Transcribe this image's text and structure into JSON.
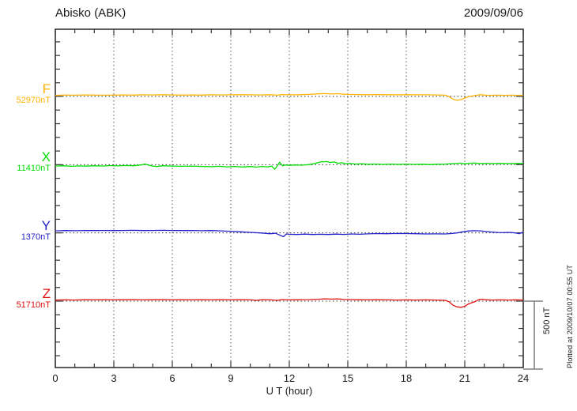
{
  "header": {
    "title": "Abisko (ABK)",
    "date": "2009/09/06"
  },
  "x_axis": {
    "label": "U T (hour)",
    "ticks": [
      0,
      3,
      6,
      9,
      12,
      15,
      18,
      21,
      24
    ]
  },
  "scale_bar": {
    "label": "500 nT",
    "value_nT": 500
  },
  "footer_note": "Plotted at 2009/10/07 00:55 UT",
  "chart_data": {
    "type": "line",
    "title": "Abisko (ABK) magnetogram 2009/09/06",
    "xlabel": "U T (hour)",
    "x_range": [
      0,
      24
    ],
    "x_major_gridline_step_hours": 3,
    "x_minor_tick_step_hours": 1,
    "y_minor_tick_step_nT": 100,
    "trace_spacing_nT": 500,
    "grid": "dotted vertical gridlines every 3 h; dotted horizontal baseline per trace",
    "series": [
      {
        "name": "F",
        "baseline_nT": 52970,
        "baseline_label": "52970nT",
        "color": "#FFB300",
        "points": [
          [
            0,
            8
          ],
          [
            0.5,
            10
          ],
          [
            1,
            9
          ],
          [
            1.5,
            11
          ],
          [
            2,
            10
          ],
          [
            2.5,
            9
          ],
          [
            3,
            10
          ],
          [
            3.5,
            11
          ],
          [
            4,
            10
          ],
          [
            4.5,
            12
          ],
          [
            5,
            11
          ],
          [
            5.5,
            13
          ],
          [
            6,
            11
          ],
          [
            6.5,
            10
          ],
          [
            7,
            11
          ],
          [
            7.5,
            10
          ],
          [
            8,
            12
          ],
          [
            8.5,
            11
          ],
          [
            9,
            12
          ],
          [
            9.5,
            13
          ],
          [
            10,
            12
          ],
          [
            10.5,
            11
          ],
          [
            11,
            13
          ],
          [
            11.4,
            9
          ],
          [
            11.6,
            14
          ],
          [
            12,
            12
          ],
          [
            12.5,
            13
          ],
          [
            13,
            15
          ],
          [
            13.5,
            19
          ],
          [
            13.8,
            21
          ],
          [
            14.2,
            18
          ],
          [
            14.5,
            20
          ],
          [
            14.8,
            16
          ],
          [
            15,
            15
          ],
          [
            15.5,
            14
          ],
          [
            16,
            13
          ],
          [
            16.5,
            14
          ],
          [
            17,
            13
          ],
          [
            17.5,
            12
          ],
          [
            18,
            13
          ],
          [
            18.5,
            12
          ],
          [
            19,
            12
          ],
          [
            19.5,
            11
          ],
          [
            20,
            9
          ],
          [
            20.2,
            -2
          ],
          [
            20.4,
            -20
          ],
          [
            20.6,
            -28
          ],
          [
            20.8,
            -24
          ],
          [
            21,
            -12
          ],
          [
            21.2,
            -2
          ],
          [
            21.5,
            6
          ],
          [
            21.8,
            13
          ],
          [
            22,
            10
          ],
          [
            22.3,
            8
          ],
          [
            22.7,
            9
          ],
          [
            23,
            8
          ],
          [
            23.4,
            9
          ],
          [
            23.7,
            8
          ],
          [
            24,
            9
          ]
        ]
      },
      {
        "name": "X",
        "baseline_nT": 11410,
        "baseline_label": "11410nT",
        "color": "#00DD00",
        "points": [
          [
            0,
            -10
          ],
          [
            0.4,
            -8
          ],
          [
            0.8,
            -12
          ],
          [
            1.2,
            -9
          ],
          [
            1.6,
            -11
          ],
          [
            2,
            -8
          ],
          [
            2.4,
            -10
          ],
          [
            2.8,
            -7
          ],
          [
            3.2,
            -9
          ],
          [
            3.6,
            -6
          ],
          [
            4,
            -8
          ],
          [
            4.4,
            -2
          ],
          [
            4.6,
            4
          ],
          [
            4.8,
            -4
          ],
          [
            5,
            -10
          ],
          [
            5.2,
            -14
          ],
          [
            5.5,
            -8
          ],
          [
            6,
            -10
          ],
          [
            6.5,
            -12
          ],
          [
            7,
            -10
          ],
          [
            7.5,
            -13
          ],
          [
            8,
            -15
          ],
          [
            8.4,
            -12
          ],
          [
            8.8,
            -16
          ],
          [
            9.2,
            -13
          ],
          [
            9.6,
            -17
          ],
          [
            10,
            -14
          ],
          [
            10.3,
            -18
          ],
          [
            10.6,
            -13
          ],
          [
            10.9,
            -16
          ],
          [
            11.1,
            -10
          ],
          [
            11.25,
            -34
          ],
          [
            11.4,
            -5
          ],
          [
            11.5,
            18
          ],
          [
            11.65,
            -8
          ],
          [
            11.8,
            -2
          ],
          [
            12,
            -5
          ],
          [
            12.3,
            -2
          ],
          [
            12.6,
            -4
          ],
          [
            13,
            0
          ],
          [
            13.3,
            8
          ],
          [
            13.6,
            20
          ],
          [
            13.9,
            23
          ],
          [
            14.1,
            16
          ],
          [
            14.3,
            20
          ],
          [
            14.5,
            10
          ],
          [
            14.7,
            14
          ],
          [
            14.9,
            6
          ],
          [
            15.1,
            10
          ],
          [
            15.4,
            4
          ],
          [
            15.7,
            7
          ],
          [
            16,
            3
          ],
          [
            16.4,
            5
          ],
          [
            16.8,
            2
          ],
          [
            17.2,
            4
          ],
          [
            17.6,
            2
          ],
          [
            18,
            4
          ],
          [
            18.4,
            2
          ],
          [
            18.8,
            3
          ],
          [
            19.2,
            1
          ],
          [
            19.6,
            3
          ],
          [
            20,
            4
          ],
          [
            20.4,
            8
          ],
          [
            20.8,
            11
          ],
          [
            21,
            6
          ],
          [
            21.2,
            10
          ],
          [
            21.5,
            12
          ],
          [
            21.8,
            8
          ],
          [
            22.1,
            10
          ],
          [
            22.4,
            8
          ],
          [
            22.8,
            10
          ],
          [
            23.2,
            8
          ],
          [
            23.6,
            9
          ],
          [
            24,
            10
          ]
        ]
      },
      {
        "name": "Y",
        "baseline_nT": 1370,
        "baseline_label": "1370nT",
        "color": "#2222CC",
        "points": [
          [
            0,
            15
          ],
          [
            0.5,
            17
          ],
          [
            1,
            16
          ],
          [
            1.5,
            18
          ],
          [
            2,
            17
          ],
          [
            2.5,
            18
          ],
          [
            3,
            17
          ],
          [
            3.5,
            18
          ],
          [
            4,
            19
          ],
          [
            4.5,
            17
          ],
          [
            5,
            18
          ],
          [
            5.5,
            19
          ],
          [
            6,
            18
          ],
          [
            6.5,
            17
          ],
          [
            7,
            18
          ],
          [
            7.5,
            16
          ],
          [
            8,
            17
          ],
          [
            8.5,
            15
          ],
          [
            9,
            12
          ],
          [
            9.5,
            8
          ],
          [
            10,
            4
          ],
          [
            10.5,
            0
          ],
          [
            11,
            -6
          ],
          [
            11.3,
            -3
          ],
          [
            11.55,
            -18
          ],
          [
            11.7,
            -28
          ],
          [
            11.85,
            -8
          ],
          [
            12,
            -10
          ],
          [
            12.4,
            -12
          ],
          [
            12.8,
            -9
          ],
          [
            13.2,
            -12
          ],
          [
            13.6,
            -10
          ],
          [
            14,
            -12
          ],
          [
            14.4,
            -9
          ],
          [
            14.8,
            -11
          ],
          [
            15.2,
            -8
          ],
          [
            15.6,
            -10
          ],
          [
            16,
            -7
          ],
          [
            16.5,
            -5
          ],
          [
            17,
            -6
          ],
          [
            17.5,
            -4
          ],
          [
            18,
            -5
          ],
          [
            18.5,
            -6
          ],
          [
            19,
            -8
          ],
          [
            19.5,
            -7
          ],
          [
            20,
            -8
          ],
          [
            20.3,
            -5
          ],
          [
            20.6,
            0
          ],
          [
            20.9,
            8
          ],
          [
            21.2,
            14
          ],
          [
            21.5,
            16
          ],
          [
            21.8,
            15
          ],
          [
            22.1,
            10
          ],
          [
            22.4,
            6
          ],
          [
            22.7,
            3
          ],
          [
            23,
            2
          ],
          [
            23.3,
            4
          ],
          [
            23.6,
            0
          ],
          [
            23.8,
            -6
          ],
          [
            23.9,
            2
          ],
          [
            24,
            0
          ]
        ]
      },
      {
        "name": "Z",
        "baseline_nT": 51710,
        "baseline_label": "51710nT",
        "color": "#E01010",
        "points": [
          [
            0,
            8
          ],
          [
            0.5,
            9
          ],
          [
            1,
            8
          ],
          [
            1.5,
            10
          ],
          [
            2,
            9
          ],
          [
            2.5,
            10
          ],
          [
            3,
            9
          ],
          [
            3.5,
            10
          ],
          [
            4,
            11
          ],
          [
            4.5,
            9
          ],
          [
            5,
            10
          ],
          [
            5.5,
            11
          ],
          [
            6,
            9
          ],
          [
            6.5,
            10
          ],
          [
            7,
            9
          ],
          [
            7.5,
            10
          ],
          [
            8,
            9
          ],
          [
            8.5,
            10
          ],
          [
            9,
            9
          ],
          [
            9.5,
            10
          ],
          [
            10,
            9
          ],
          [
            10.3,
            6
          ],
          [
            10.6,
            10
          ],
          [
            11,
            9
          ],
          [
            11.4,
            6
          ],
          [
            11.6,
            11
          ],
          [
            12,
            9
          ],
          [
            12.5,
            10
          ],
          [
            13,
            11
          ],
          [
            13.5,
            14
          ],
          [
            13.8,
            17
          ],
          [
            14.2,
            15
          ],
          [
            14.5,
            17
          ],
          [
            14.8,
            12
          ],
          [
            15.2,
            11
          ],
          [
            15.6,
            10
          ],
          [
            16,
            9
          ],
          [
            16.5,
            10
          ],
          [
            17,
            9
          ],
          [
            17.5,
            8
          ],
          [
            18,
            9
          ],
          [
            18.5,
            8
          ],
          [
            19,
            9
          ],
          [
            19.5,
            8
          ],
          [
            20,
            6
          ],
          [
            20.2,
            -5
          ],
          [
            20.4,
            -30
          ],
          [
            20.6,
            -42
          ],
          [
            20.8,
            -45
          ],
          [
            21,
            -38
          ],
          [
            21.2,
            -20
          ],
          [
            21.5,
            -5
          ],
          [
            21.7,
            10
          ],
          [
            21.9,
            14
          ],
          [
            22.1,
            10
          ],
          [
            22.4,
            8
          ],
          [
            22.8,
            9
          ],
          [
            23.2,
            8
          ],
          [
            23.6,
            9
          ],
          [
            24,
            8
          ]
        ]
      }
    ]
  }
}
